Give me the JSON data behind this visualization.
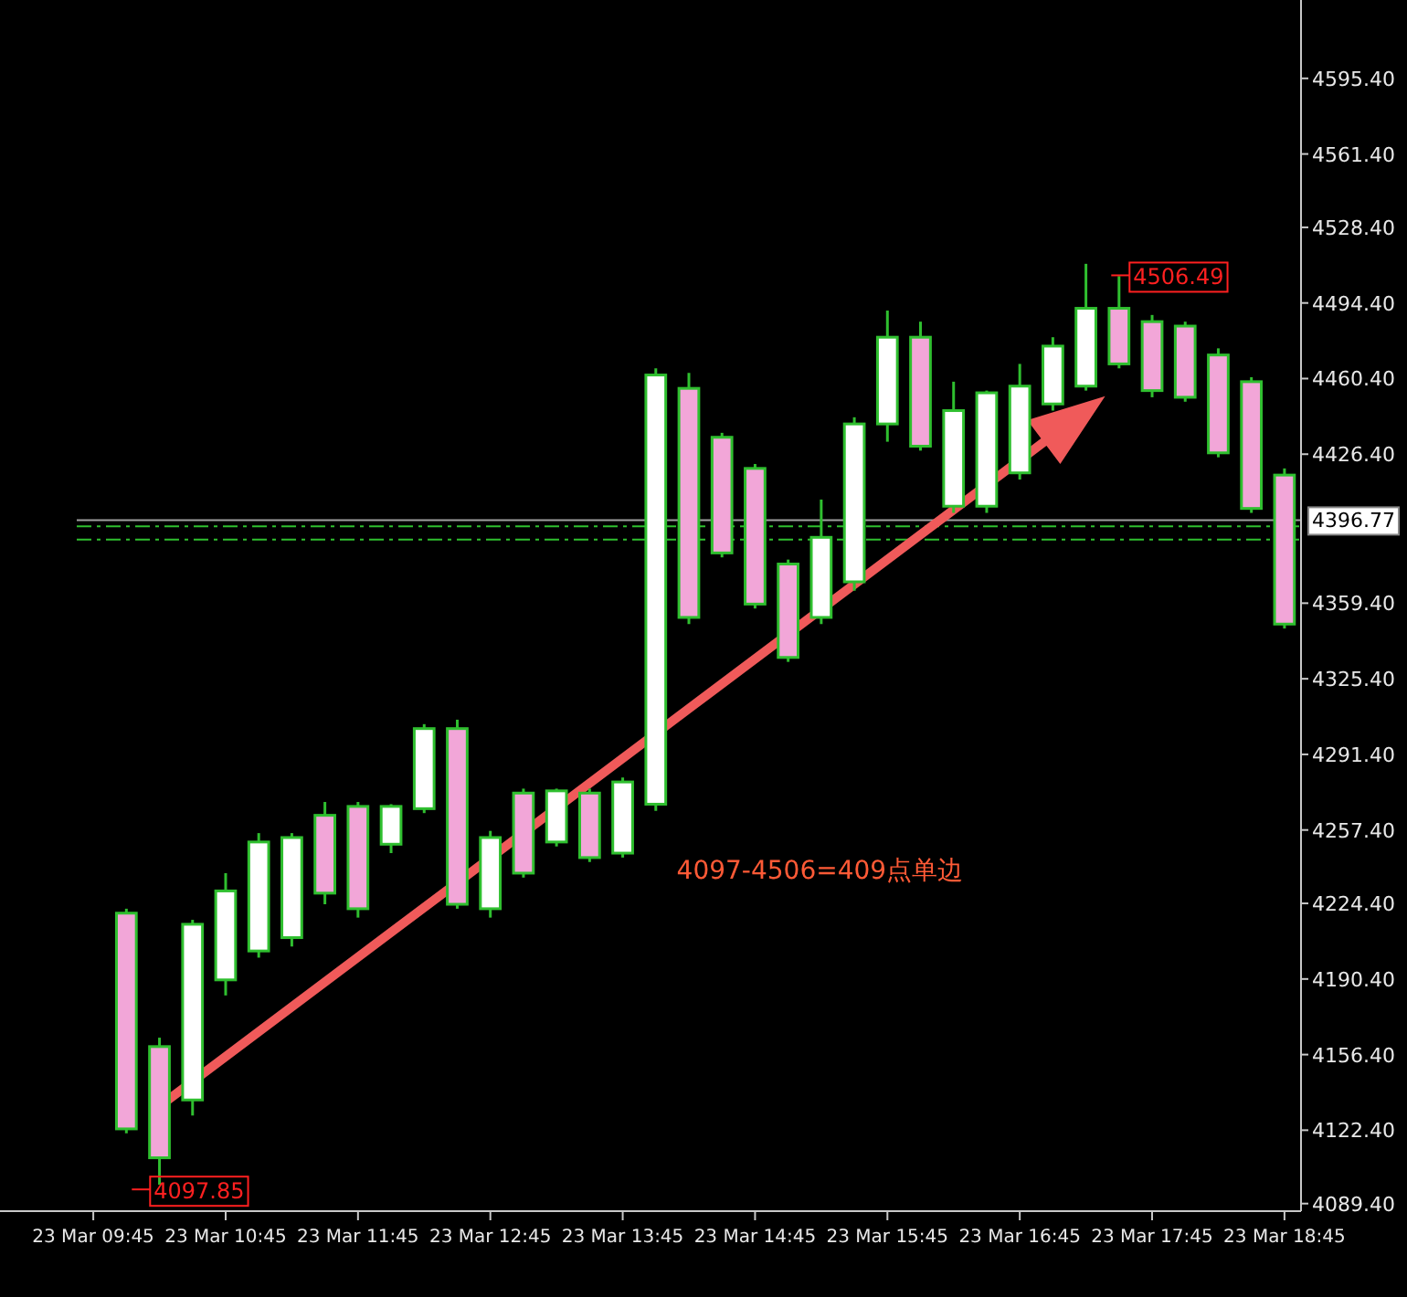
{
  "chart_data": {
    "type": "candlestick",
    "categories": [
      "23 Mar 09:45",
      null,
      null,
      null,
      "23 Mar 10:45",
      null,
      null,
      null,
      "23 Mar 11:45",
      null,
      null,
      null,
      "23 Mar 12:45",
      null,
      null,
      null,
      "23 Mar 13:45",
      null,
      null,
      null,
      "23 Mar 14:45",
      null,
      null,
      null,
      "23 Mar 15:45",
      null,
      null,
      null,
      "23 Mar 16:45",
      null,
      null,
      null,
      "23 Mar 17:45",
      null,
      null,
      null,
      "23 Mar 18:45"
    ],
    "ohlc": [
      null,
      [
        4220,
        4222,
        4121,
        4123
      ],
      [
        4160,
        4164,
        4097.85,
        4110
      ],
      [
        4136,
        4217,
        4129,
        4215
      ],
      [
        4190,
        4238,
        4183,
        4230
      ],
      [
        4203,
        4256,
        4200,
        4252
      ],
      [
        4209,
        4256,
        4205,
        4254
      ],
      [
        4264,
        4270,
        4224,
        4229
      ],
      [
        4268,
        4270,
        4218,
        4222
      ],
      [
        4251,
        4269,
        4247,
        4268
      ],
      [
        4267,
        4305,
        4265,
        4303
      ],
      [
        4303,
        4307,
        4222,
        4224
      ],
      [
        4222,
        4257,
        4218,
        4254
      ],
      [
        4274,
        4276,
        4236,
        4238
      ],
      [
        4252,
        4276,
        4250,
        4275
      ],
      [
        4274,
        4276,
        4243,
        4245
      ],
      [
        4247,
        4281,
        4245,
        4279
      ],
      [
        4269,
        4465,
        4266,
        4462
      ],
      [
        4456,
        4463,
        4350,
        4353
      ],
      [
        4434,
        4436,
        4380,
        4382
      ],
      [
        4420,
        4422,
        4357,
        4359
      ],
      [
        4377,
        4379,
        4333,
        4335
      ],
      [
        4353,
        4406,
        4350,
        4389
      ],
      [
        4369,
        4443,
        4365,
        4440
      ],
      [
        4440,
        4491,
        4432,
        4479
      ],
      [
        4479,
        4486,
        4428,
        4430
      ],
      [
        4403,
        4459,
        4400,
        4446
      ],
      [
        4403,
        4455,
        4400,
        4454
      ],
      [
        4418,
        4467,
        4415,
        4457
      ],
      [
        4449,
        4479,
        4446,
        4475
      ],
      [
        4457,
        4512,
        4455,
        4492
      ],
      [
        4492,
        4506.49,
        4465,
        4467
      ],
      [
        4486,
        4489,
        4452,
        4455
      ],
      [
        4484,
        4486,
        4450,
        4452
      ],
      [
        4471,
        4474,
        4425,
        4427
      ],
      [
        4459,
        4461,
        4400,
        4402
      ],
      [
        4417,
        4420,
        4348,
        4350
      ]
    ],
    "color": "#2fbf2f",
    "ylim": [
      4086,
      4629
    ],
    "yticks": [
      {
        "value": 4089.4,
        "label": "4089.40"
      },
      {
        "value": 4122.4,
        "label": "4122.40"
      },
      {
        "value": 4156.4,
        "label": "4156.40"
      },
      {
        "value": 4190.4,
        "label": "4190.40"
      },
      {
        "value": 4224.4,
        "label": "4224.40"
      },
      {
        "value": 4257.4,
        "label": "4257.40"
      },
      {
        "value": 4291.4,
        "label": "4291.40"
      },
      {
        "value": 4325.4,
        "label": "4325.40"
      },
      {
        "value": 4359.4,
        "label": "4359.40"
      },
      {
        "value": 4426.4,
        "label": "4426.40"
      },
      {
        "value": 4460.4,
        "label": "4460.40"
      },
      {
        "value": 4494.4,
        "label": "4494.40"
      },
      {
        "value": 4528.4,
        "label": "4528.40"
      },
      {
        "value": 4561.4,
        "label": "4561.40"
      },
      {
        "value": 4595.4,
        "label": "4595.40"
      }
    ],
    "ref_lines": [
      {
        "axis": "y",
        "value": 4396.77,
        "label": "4396.77",
        "color": "#a0a0a0"
      },
      {
        "axis": "y",
        "value": 4394,
        "color": "#2fbf2f",
        "line_style": "dashed"
      },
      {
        "axis": "y",
        "value": 4388,
        "color": "#2fbf2f",
        "line_style": "dashed"
      }
    ],
    "annotations": [
      "4097.85",
      "4506.49",
      "4097-4506=409点单边"
    ]
  }
}
